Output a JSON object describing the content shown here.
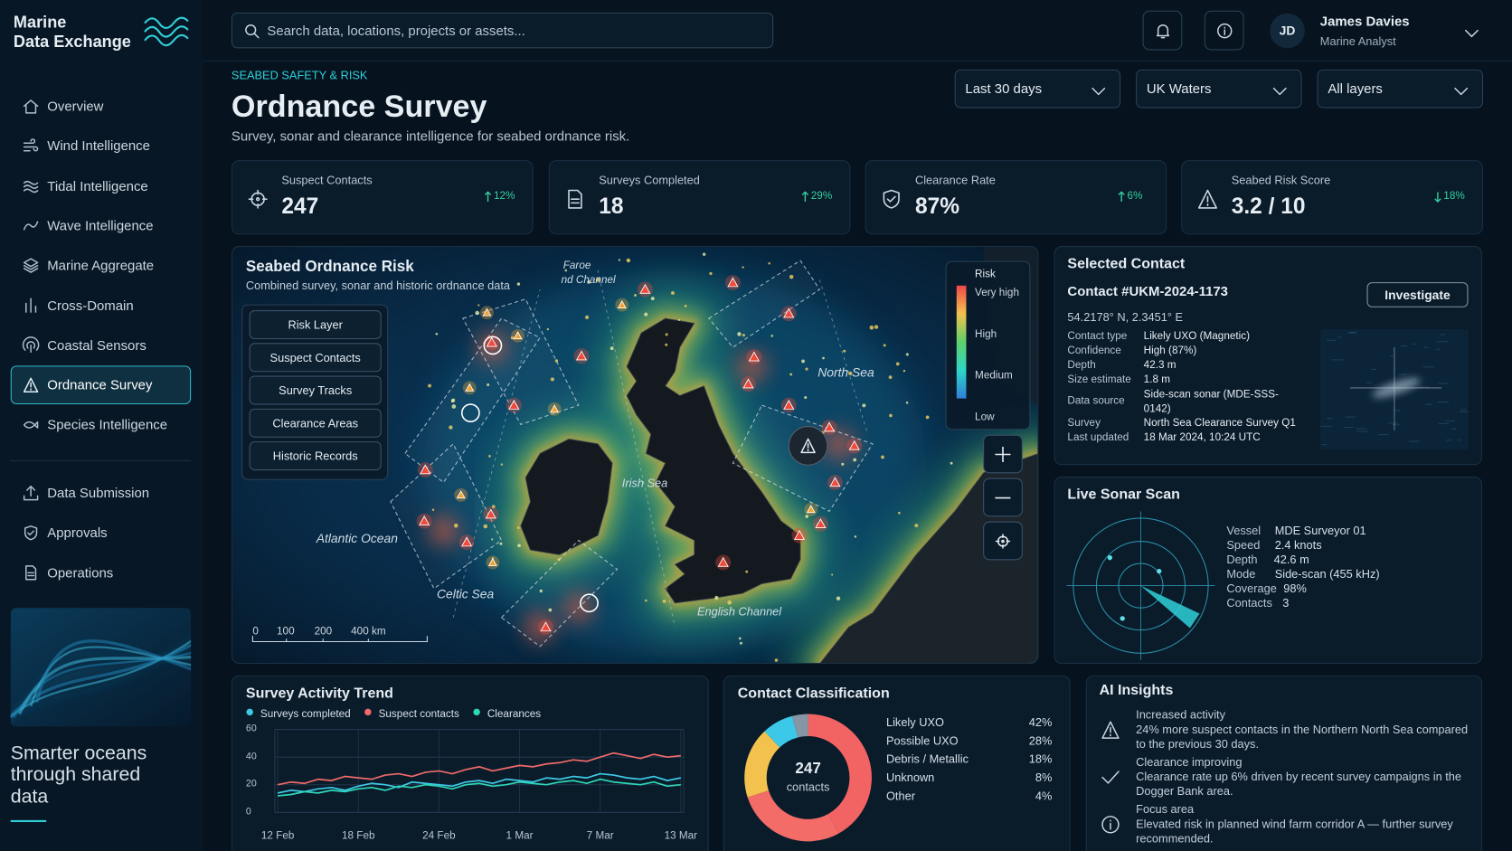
{
  "brand": {
    "lines": [
      "Marine",
      "Data Exchange"
    ]
  },
  "nav": {
    "main": [
      "Overview",
      "Wind Intelligence",
      "Tidal Intelligence",
      "Wave Intelligence",
      "Marine Aggregate",
      "Cross-Domain",
      "Coastal Sensors",
      "Ordnance Survey",
      "Species Intelligence"
    ],
    "secondary": [
      "Data Submission",
      "Approvals",
      "Operations"
    ],
    "active": 7
  },
  "tagline": "Smarter oceans through shared data",
  "search": "Search data, locations, projects or assets...",
  "user": {
    "initials": "JD",
    "name": "James Davies",
    "role": "Marine Analyst"
  },
  "header": {
    "eyebrow": "SEABED SAFETY & RISK",
    "title": "Ordnance Survey",
    "subtitle": "Survey, sonar and clearance intelligence for seabed ordnance risk."
  },
  "filters": [
    "Last 30 days",
    "UK Waters",
    "All layers"
  ],
  "kpis": [
    {
      "label": "Suspect Contacts",
      "value": "247",
      "change": "12%",
      "trend": "up"
    },
    {
      "label": "Surveys Completed",
      "value": "18",
      "change": "29%",
      "trend": "up"
    },
    {
      "label": "Clearance Rate",
      "value": "87%",
      "change": "6%",
      "trend": "up"
    },
    {
      "label": "Seabed Risk Score",
      "value": "3.2 / 10",
      "change": "18%",
      "trend": "down"
    }
  ],
  "map": {
    "title": "Seabed Ordnance Risk",
    "subtitle": "Combined survey, sonar and historic ordnance data",
    "layers": [
      "Risk Layer",
      "Suspect Contacts",
      "Survey Tracks",
      "Clearance Areas",
      "Historic Records"
    ],
    "legend": {
      "title": "Risk",
      "levels": [
        "Very high",
        "High",
        "Medium",
        "Low"
      ]
    },
    "labels": [
      "Faroe",
      "nd Channel",
      "North Sea",
      "Irish Sea",
      "Atlantic Ocean",
      "Celtic Sea",
      "English Channel"
    ],
    "scale": [
      "0",
      "100",
      "200",
      "400 km"
    ]
  },
  "contact": {
    "title": "Selected Contact",
    "id": "Contact #UKM-2024-1173",
    "action": "Investigate",
    "coords": "54.2178° N, 2.3451° E",
    "fields": [
      [
        "Contact type",
        "Likely UXO (Magnetic)"
      ],
      [
        "Confidence",
        "High (87%)"
      ],
      [
        "Depth",
        "42.3 m"
      ],
      [
        "Size estimate",
        "1.8 m"
      ],
      [
        "Data source",
        "Side-scan sonar (MDE-SSS-0142)"
      ],
      [
        "Survey",
        "North Sea Clearance Survey Q1"
      ],
      [
        "Last updated",
        "18 Mar 2024, 10:24 UTC"
      ]
    ]
  },
  "sonar": {
    "title": "Live Sonar Scan",
    "fields": [
      [
        "Vessel",
        "MDE Surveyor 01"
      ],
      [
        "Speed",
        "2.4 knots"
      ],
      [
        "Depth",
        "42.6 m"
      ],
      [
        "Mode",
        "Side-scan (455 kHz)"
      ],
      [
        "Coverage",
        "98%"
      ],
      [
        "Contacts",
        "3"
      ]
    ]
  },
  "chart_data": [
    {
      "type": "line",
      "title": "Survey Activity Trend",
      "categories": [
        "12 Feb",
        null,
        null,
        null,
        null,
        null,
        "18 Feb",
        null,
        null,
        null,
        null,
        null,
        "24 Feb",
        null,
        null,
        null,
        null,
        null,
        "1 Mar",
        null,
        null,
        null,
        null,
        null,
        "7 Mar",
        null,
        null,
        null,
        null,
        null,
        "13 Mar"
      ],
      "series": [
        {
          "name": "Surveys completed",
          "color": "#3ec9e6",
          "values": [
            14,
            16,
            15,
            17,
            18,
            16,
            19,
            21,
            20,
            18,
            22,
            21,
            20,
            19,
            22,
            23,
            21,
            24,
            23,
            22,
            25,
            24,
            26,
            25,
            28,
            27,
            25,
            24,
            26,
            23,
            25
          ]
        },
        {
          "name": "Suspect contacts",
          "color": "#ef6a6a",
          "values": [
            20,
            22,
            21,
            24,
            23,
            26,
            25,
            24,
            27,
            28,
            26,
            29,
            30,
            28,
            31,
            33,
            30,
            32,
            34,
            33,
            35,
            36,
            38,
            37,
            40,
            43,
            41,
            39,
            42,
            40,
            41
          ]
        },
        {
          "name": "Clearances",
          "color": "#2ed6b8",
          "values": [
            12,
            13,
            15,
            14,
            16,
            15,
            17,
            18,
            16,
            19,
            18,
            20,
            19,
            17,
            20,
            21,
            19,
            20,
            22,
            21,
            20,
            22,
            23,
            21,
            24,
            22,
            21,
            20,
            22,
            19,
            20
          ]
        }
      ],
      "ylim": [
        0,
        60
      ],
      "yticks": [
        0,
        20,
        40,
        60
      ],
      "grid": true
    },
    {
      "type": "donut",
      "title": "Contact Classification",
      "center_value": "247",
      "center_label": "contacts",
      "categories": [
        "Likely UXO",
        "Possible UXO",
        "Debris / Metallic",
        "Unknown",
        "Other"
      ],
      "values": [
        42,
        28,
        18,
        8,
        4
      ],
      "value_labels": [
        "42%",
        "28%",
        "18%",
        "8%",
        "4%"
      ],
      "colors": [
        "#f26464",
        "#f36c68",
        "#f2c14e",
        "#3cc8e8",
        "#8796a5"
      ]
    }
  ],
  "insights": {
    "title": "AI Insights",
    "items": [
      {
        "title": "Increased activity",
        "text": "24% more suspect contacts in the Northern North Sea compared to the previous 30 days."
      },
      {
        "title": "Clearance improving",
        "text": "Clearance rate up 6% driven by recent survey campaigns in the Dogger Bank area."
      },
      {
        "title": "Focus area",
        "text": "Elevated risk in planned wind farm corridor A — further survey recommended."
      }
    ]
  }
}
